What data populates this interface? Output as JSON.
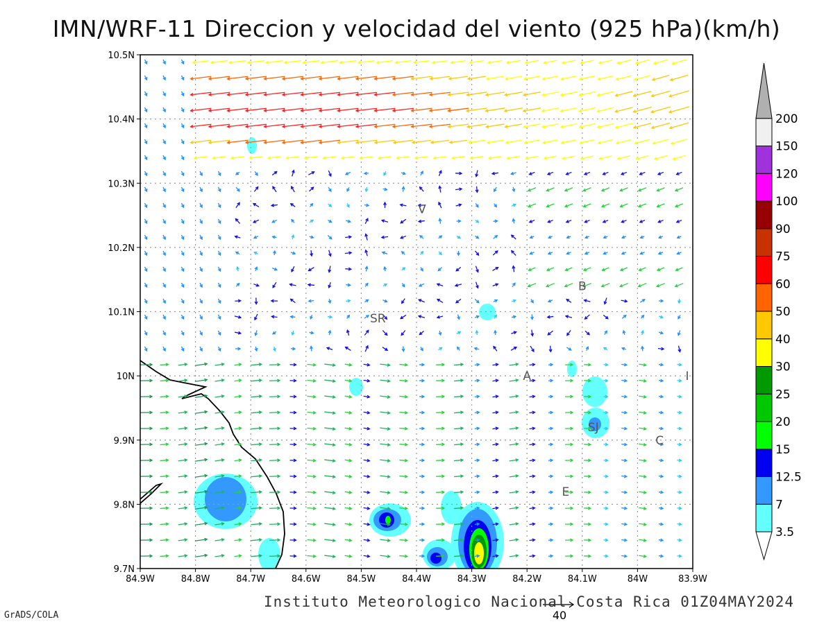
{
  "header": {
    "title": "IMN/WRF-11 Direccion y velocidad del viento (925 hPa)(km/h)"
  },
  "footer": {
    "institution": "Instituto Meteorologico Nacional Costa Rica 01Z04MAY2024",
    "software": "GrADS/COLA"
  },
  "map": {
    "lon_range": [
      -84.9,
      -83.9
    ],
    "lat_range": [
      9.7,
      10.5
    ],
    "x_tick_labels": [
      "84.9W",
      "84.8W",
      "84.7W",
      "84.6W",
      "84.5W",
      "84.4W",
      "84.3W",
      "84.2W",
      "84.1W",
      "84W",
      "83.9W"
    ],
    "y_tick_labels": [
      "9.7N",
      "9.8N",
      "9.9N",
      "10N",
      "10.1N",
      "10.2N",
      "10.3N",
      "10.4N",
      "10.5N"
    ],
    "grid": "dotted",
    "place_labels": [
      {
        "text": "V",
        "lon": -84.39,
        "lat": 10.26
      },
      {
        "text": "SR",
        "lon": -84.47,
        "lat": 10.09
      },
      {
        "text": "B",
        "lon": -84.1,
        "lat": 10.14
      },
      {
        "text": "A",
        "lon": -84.2,
        "lat": 10.0
      },
      {
        "text": "I",
        "lon": -83.91,
        "lat": 10.0
      },
      {
        "text": "SJ",
        "lon": -84.08,
        "lat": 9.92
      },
      {
        "text": "C",
        "lon": -83.96,
        "lat": 9.9
      },
      {
        "text": "E",
        "lon": -84.13,
        "lat": 9.82
      }
    ],
    "reference_vector": {
      "value": "40"
    }
  },
  "colorbar": {
    "levels": [
      "3.5",
      "7",
      "12.5",
      "15",
      "20",
      "25",
      "30",
      "40",
      "50",
      "60",
      "75",
      "90",
      "100",
      "120",
      "150",
      "200"
    ],
    "colors": [
      "#64ffff",
      "#3399ff",
      "#0000f0",
      "#00ff00",
      "#00c800",
      "#009900",
      "#ffff00",
      "#ffc800",
      "#ff6400",
      "#ff0000",
      "#c83200",
      "#960000",
      "#ff00ff",
      "#a032dc",
      "#f0f0f0",
      "#b0b0b0"
    ]
  }
}
